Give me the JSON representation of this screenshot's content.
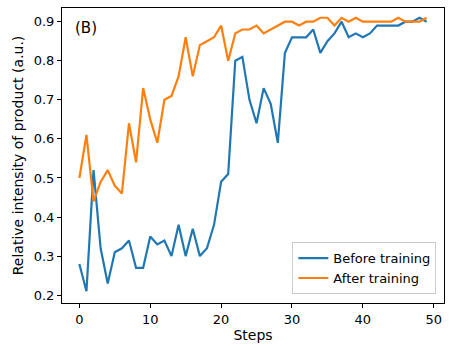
{
  "chart_data": {
    "type": "line",
    "x_label": "Steps",
    "y_label": "Relative intensity of product (a.u.)",
    "annotation": "(B)",
    "x": [
      0,
      1,
      2,
      3,
      4,
      5,
      6,
      7,
      8,
      9,
      10,
      11,
      12,
      13,
      14,
      15,
      16,
      17,
      18,
      19,
      20,
      21,
      22,
      23,
      24,
      25,
      26,
      27,
      28,
      29,
      30,
      31,
      32,
      33,
      34,
      35,
      36,
      37,
      38,
      39,
      40,
      41,
      42,
      43,
      44,
      45,
      46,
      47,
      48,
      49
    ],
    "series": [
      {
        "name": "Before training",
        "color": "#1f77b4",
        "values": [
          0.28,
          0.21,
          0.52,
          0.32,
          0.23,
          0.31,
          0.32,
          0.34,
          0.27,
          0.27,
          0.35,
          0.33,
          0.34,
          0.3,
          0.38,
          0.3,
          0.37,
          0.3,
          0.32,
          0.38,
          0.49,
          0.51,
          0.8,
          0.81,
          0.7,
          0.64,
          0.73,
          0.69,
          0.59,
          0.82,
          0.86,
          0.86,
          0.86,
          0.88,
          0.82,
          0.85,
          0.87,
          0.9,
          0.86,
          0.87,
          0.86,
          0.87,
          0.89,
          0.89,
          0.89,
          0.89,
          0.9,
          0.9,
          0.91,
          0.9
        ]
      },
      {
        "name": "After training",
        "color": "#ff7f0e",
        "values": [
          0.5,
          0.61,
          0.44,
          0.49,
          0.52,
          0.48,
          0.46,
          0.64,
          0.54,
          0.73,
          0.65,
          0.59,
          0.7,
          0.71,
          0.76,
          0.86,
          0.76,
          0.84,
          0.85,
          0.86,
          0.89,
          0.8,
          0.87,
          0.88,
          0.88,
          0.89,
          0.87,
          0.88,
          0.89,
          0.9,
          0.9,
          0.89,
          0.9,
          0.9,
          0.91,
          0.91,
          0.89,
          0.91,
          0.9,
          0.91,
          0.9,
          0.9,
          0.9,
          0.9,
          0.9,
          0.91,
          0.9,
          0.9,
          0.9,
          0.91
        ]
      }
    ],
    "xlim": [
      -2.45,
      51.45
    ],
    "xticks": [
      0,
      10,
      20,
      30,
      40,
      50
    ],
    "ylim": [
      0.18,
      0.935
    ],
    "yticks": [
      0.2,
      0.3,
      0.4,
      0.5,
      0.6,
      0.7,
      0.8,
      0.9
    ],
    "grid": false,
    "legend": "lower right"
  }
}
